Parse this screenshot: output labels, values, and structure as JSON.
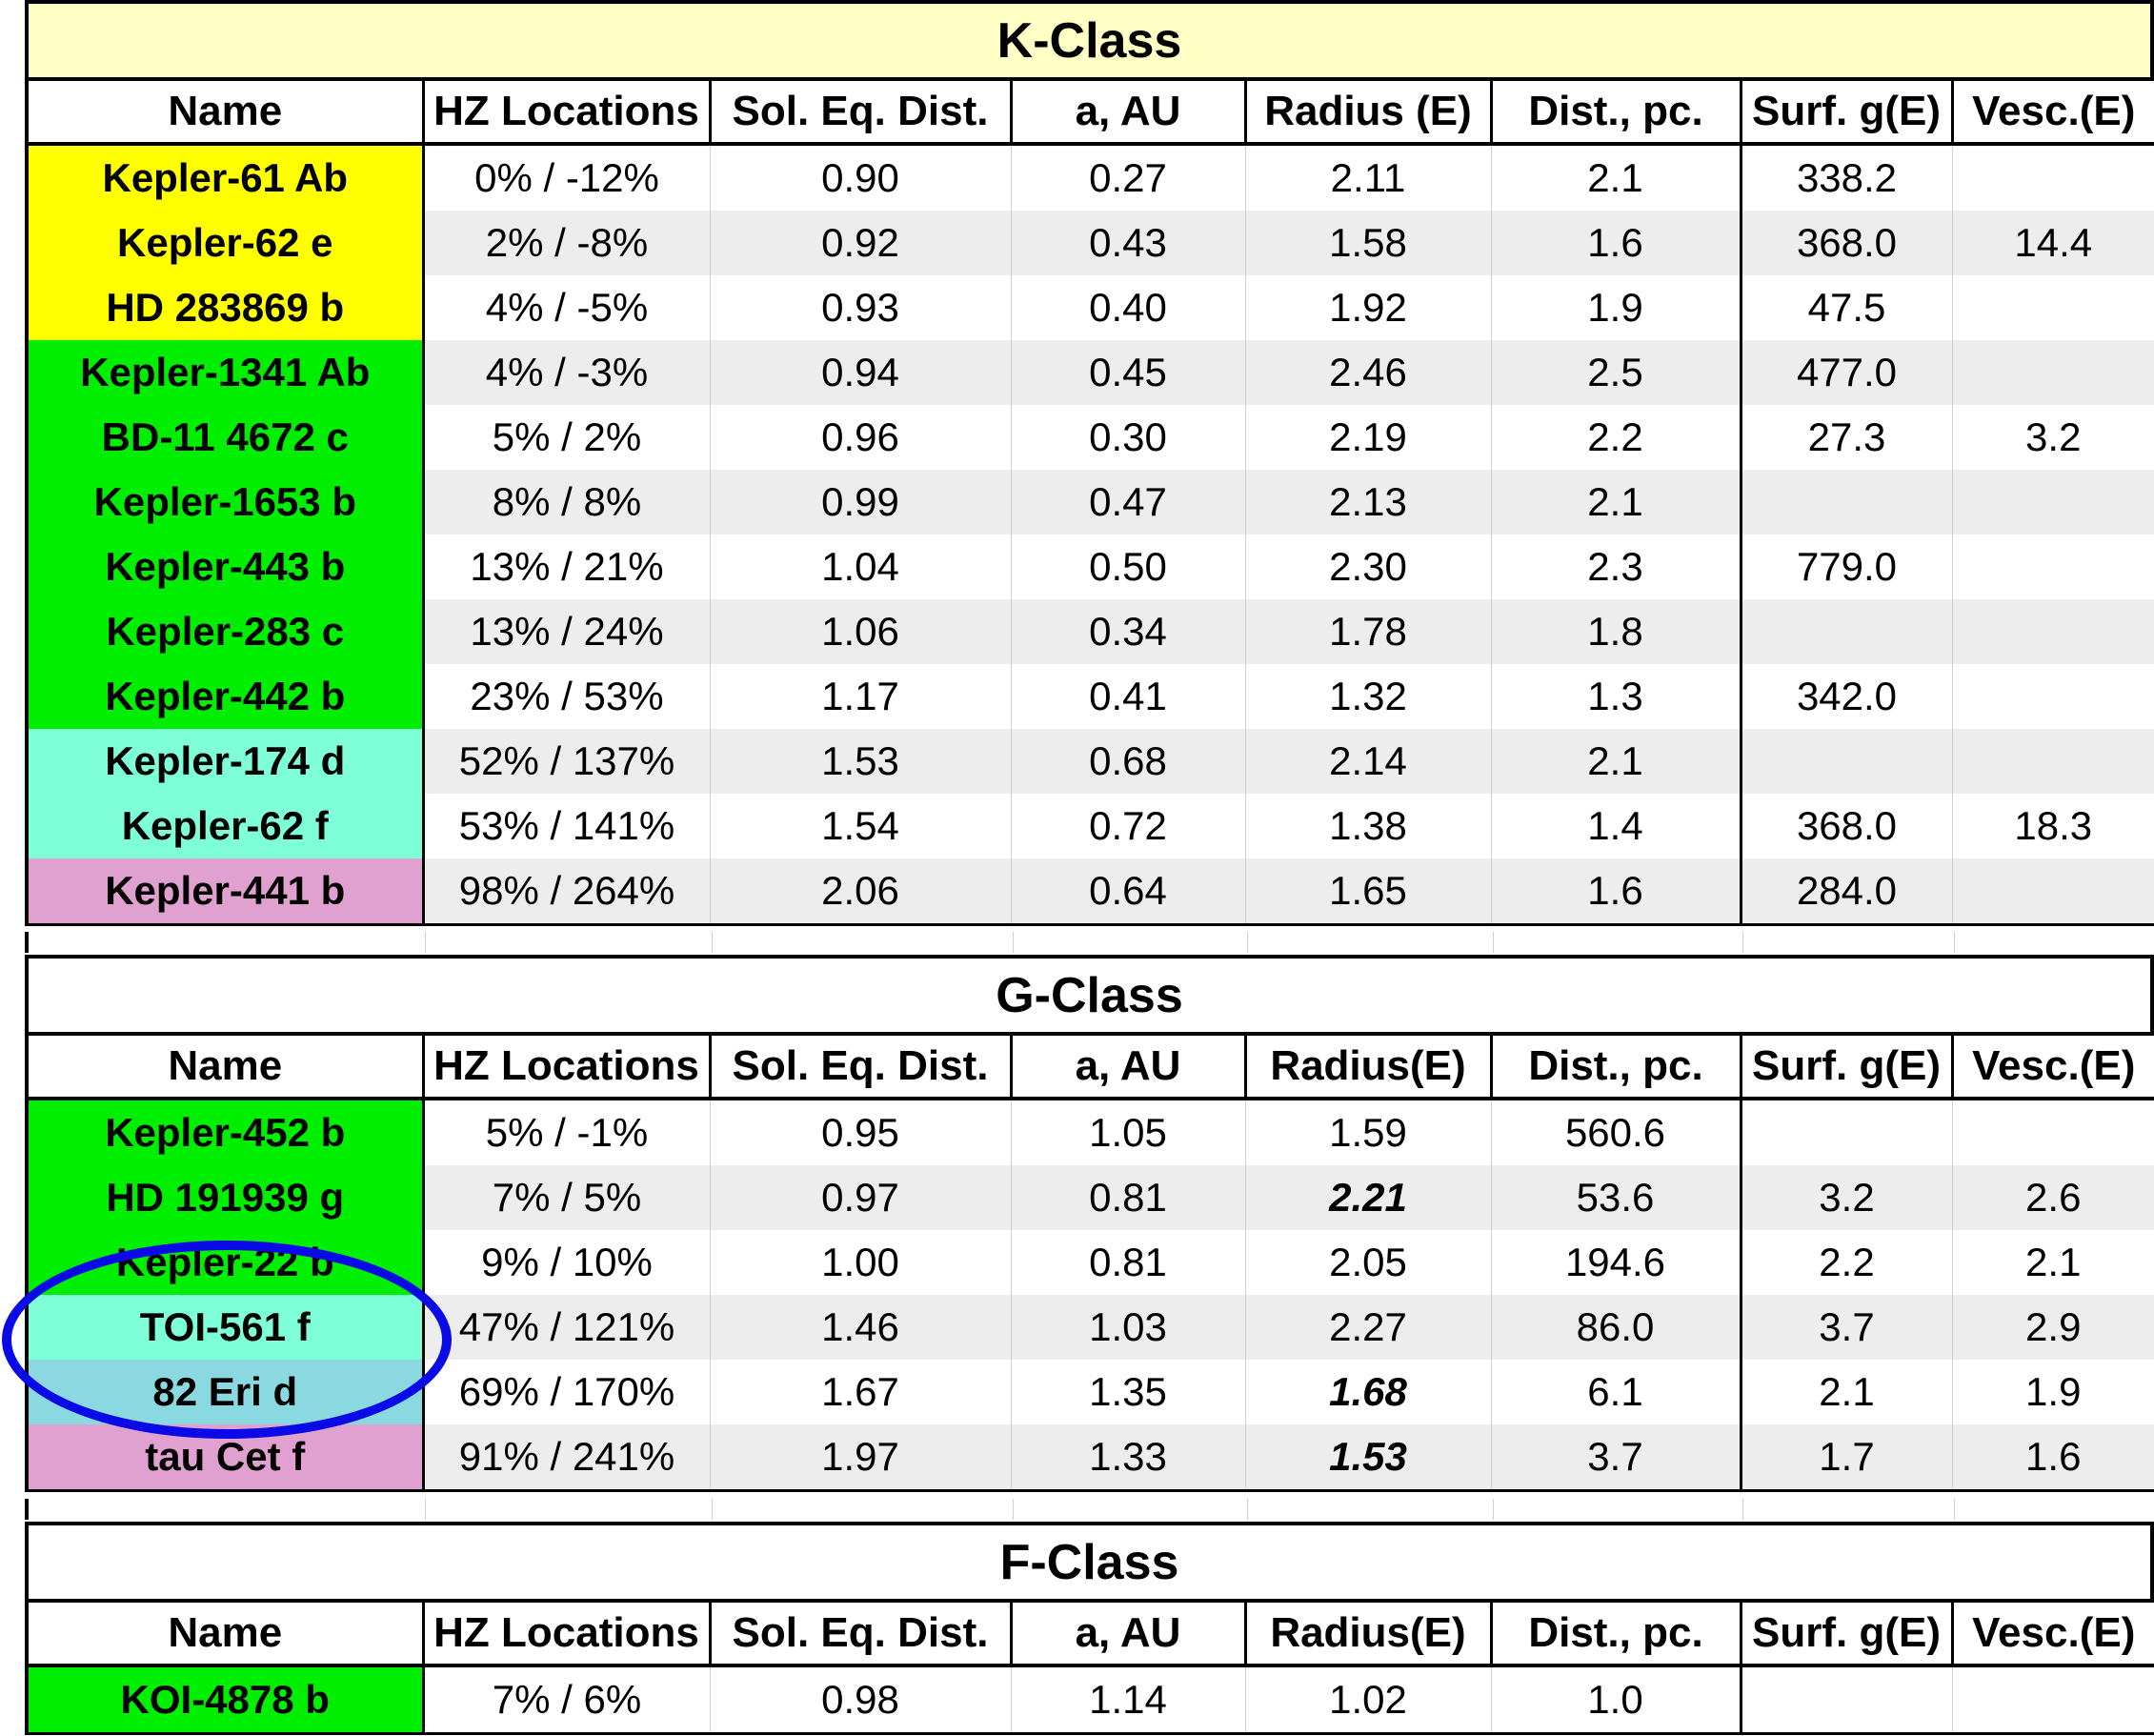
{
  "columns": [
    "Name",
    "HZ Locations",
    "Sol. Eq. Dist.",
    "a, AU",
    "Radius (E)",
    "Dist., pc.",
    "Surf. g(E)",
    "Vesc.(E)"
  ],
  "columns_alt": [
    "Name",
    "HZ Locations",
    "Sol. Eq. Dist.",
    "a, AU",
    "Radius(E)",
    "Dist., pc.",
    "Surf. g(E)",
    "Vesc.(E)"
  ],
  "colors": {
    "yellow": "#ffff00",
    "green": "#00ee00",
    "aqua": "#7fffd8",
    "pink": "#e0a0d0",
    "teal": "#8ad8e0",
    "title_yellow": "#ffffc6",
    "highlight_ellipse": "#0a0ae6"
  },
  "k_class": {
    "title": "K-Class",
    "rows": [
      {
        "name": "Kepler-61 Ab",
        "color": "yellow",
        "hz": "0% / -12%",
        "sed": "0.90",
        "a": "0.27",
        "radius": "2.11",
        "dist": "2.1",
        "g": "338.2",
        "vesc": ""
      },
      {
        "name": "Kepler-62 e",
        "color": "yellow",
        "hz": "2% / -8%",
        "sed": "0.92",
        "a": "0.43",
        "radius": "1.58",
        "dist": "1.6",
        "g": "368.0",
        "vesc": "14.4"
      },
      {
        "name": "HD 283869 b",
        "color": "yellow",
        "hz": "4% / -5%",
        "sed": "0.93",
        "a": "0.40",
        "radius": "1.92",
        "dist": "1.9",
        "g": "47.5",
        "vesc": ""
      },
      {
        "name": "Kepler-1341 Ab",
        "color": "green",
        "hz": "4% / -3%",
        "sed": "0.94",
        "a": "0.45",
        "radius": "2.46",
        "dist": "2.5",
        "g": "477.0",
        "vesc": ""
      },
      {
        "name": "BD-11 4672 c",
        "color": "green",
        "hz": "5% / 2%",
        "sed": "0.96",
        "a": "0.30",
        "radius": "2.19",
        "dist": "2.2",
        "g": "27.3",
        "vesc": "3.2"
      },
      {
        "name": "Kepler-1653 b",
        "color": "green",
        "hz": "8% / 8%",
        "sed": "0.99",
        "a": "0.47",
        "radius": "2.13",
        "dist": "2.1",
        "g": "",
        "vesc": ""
      },
      {
        "name": "Kepler-443 b",
        "color": "green",
        "hz": "13% / 21%",
        "sed": "1.04",
        "a": "0.50",
        "radius": "2.30",
        "dist": "2.3",
        "g": "779.0",
        "vesc": ""
      },
      {
        "name": "Kepler-283 c",
        "color": "green",
        "hz": "13% / 24%",
        "sed": "1.06",
        "a": "0.34",
        "radius": "1.78",
        "dist": "1.8",
        "g": "",
        "vesc": ""
      },
      {
        "name": "Kepler-442 b",
        "color": "green",
        "hz": "23% / 53%",
        "sed": "1.17",
        "a": "0.41",
        "radius": "1.32",
        "dist": "1.3",
        "g": "342.0",
        "vesc": ""
      },
      {
        "name": "Kepler-174 d",
        "color": "aqua",
        "hz": "52% / 137%",
        "sed": "1.53",
        "a": "0.68",
        "radius": "2.14",
        "dist": "2.1",
        "g": "",
        "vesc": ""
      },
      {
        "name": "Kepler-62 f",
        "color": "aqua",
        "hz": "53% / 141%",
        "sed": "1.54",
        "a": "0.72",
        "radius": "1.38",
        "dist": "1.4",
        "g": "368.0",
        "vesc": "18.3"
      },
      {
        "name": "Kepler-441 b",
        "color": "pink",
        "hz": "98% / 264%",
        "sed": "2.06",
        "a": "0.64",
        "radius": "1.65",
        "dist": "1.6",
        "g": "284.0",
        "vesc": ""
      }
    ]
  },
  "g_class": {
    "title": "G-Class",
    "rows": [
      {
        "name": "Kepler-452 b",
        "color": "green",
        "hz": "5% / -1%",
        "sed": "0.95",
        "a": "1.05",
        "radius": "1.59",
        "radius_bold": false,
        "dist": "560.6",
        "g": "",
        "vesc": ""
      },
      {
        "name": "HD 191939 g",
        "color": "green",
        "hz": "7% / 5%",
        "sed": "0.97",
        "a": "0.81",
        "radius": "2.21",
        "radius_bold": true,
        "dist": "53.6",
        "g": "3.2",
        "vesc": "2.6"
      },
      {
        "name": "Kepler-22 b",
        "color": "green",
        "hz": "9% / 10%",
        "sed": "1.00",
        "a": "0.81",
        "radius": "2.05",
        "radius_bold": false,
        "dist": "194.6",
        "g": "2.2",
        "vesc": "2.1"
      },
      {
        "name": "TOI-561 f",
        "color": "aqua",
        "hz": "47% / 121%",
        "sed": "1.46",
        "a": "1.03",
        "radius": "2.27",
        "radius_bold": false,
        "dist": "86.0",
        "g": "3.7",
        "vesc": "2.9"
      },
      {
        "name": "82 Eri d",
        "color": "teal",
        "hz": "69% / 170%",
        "sed": "1.67",
        "a": "1.35",
        "radius": "1.68",
        "radius_bold": true,
        "dist": "6.1",
        "g": "2.1",
        "vesc": "1.9"
      },
      {
        "name": "tau Cet f",
        "color": "pink",
        "hz": "91% / 241%",
        "sed": "1.97",
        "a": "1.33",
        "radius": "1.53",
        "radius_bold": true,
        "dist": "3.7",
        "g": "1.7",
        "vesc": "1.6"
      }
    ]
  },
  "f_class": {
    "title": "F-Class",
    "rows": [
      {
        "name": "KOI-4878 b",
        "color": "green",
        "hz": "7% / 6%",
        "sed": "0.98",
        "a": "1.14",
        "radius": "1.02",
        "dist": "1.0",
        "g": "",
        "vesc": ""
      }
    ]
  }
}
